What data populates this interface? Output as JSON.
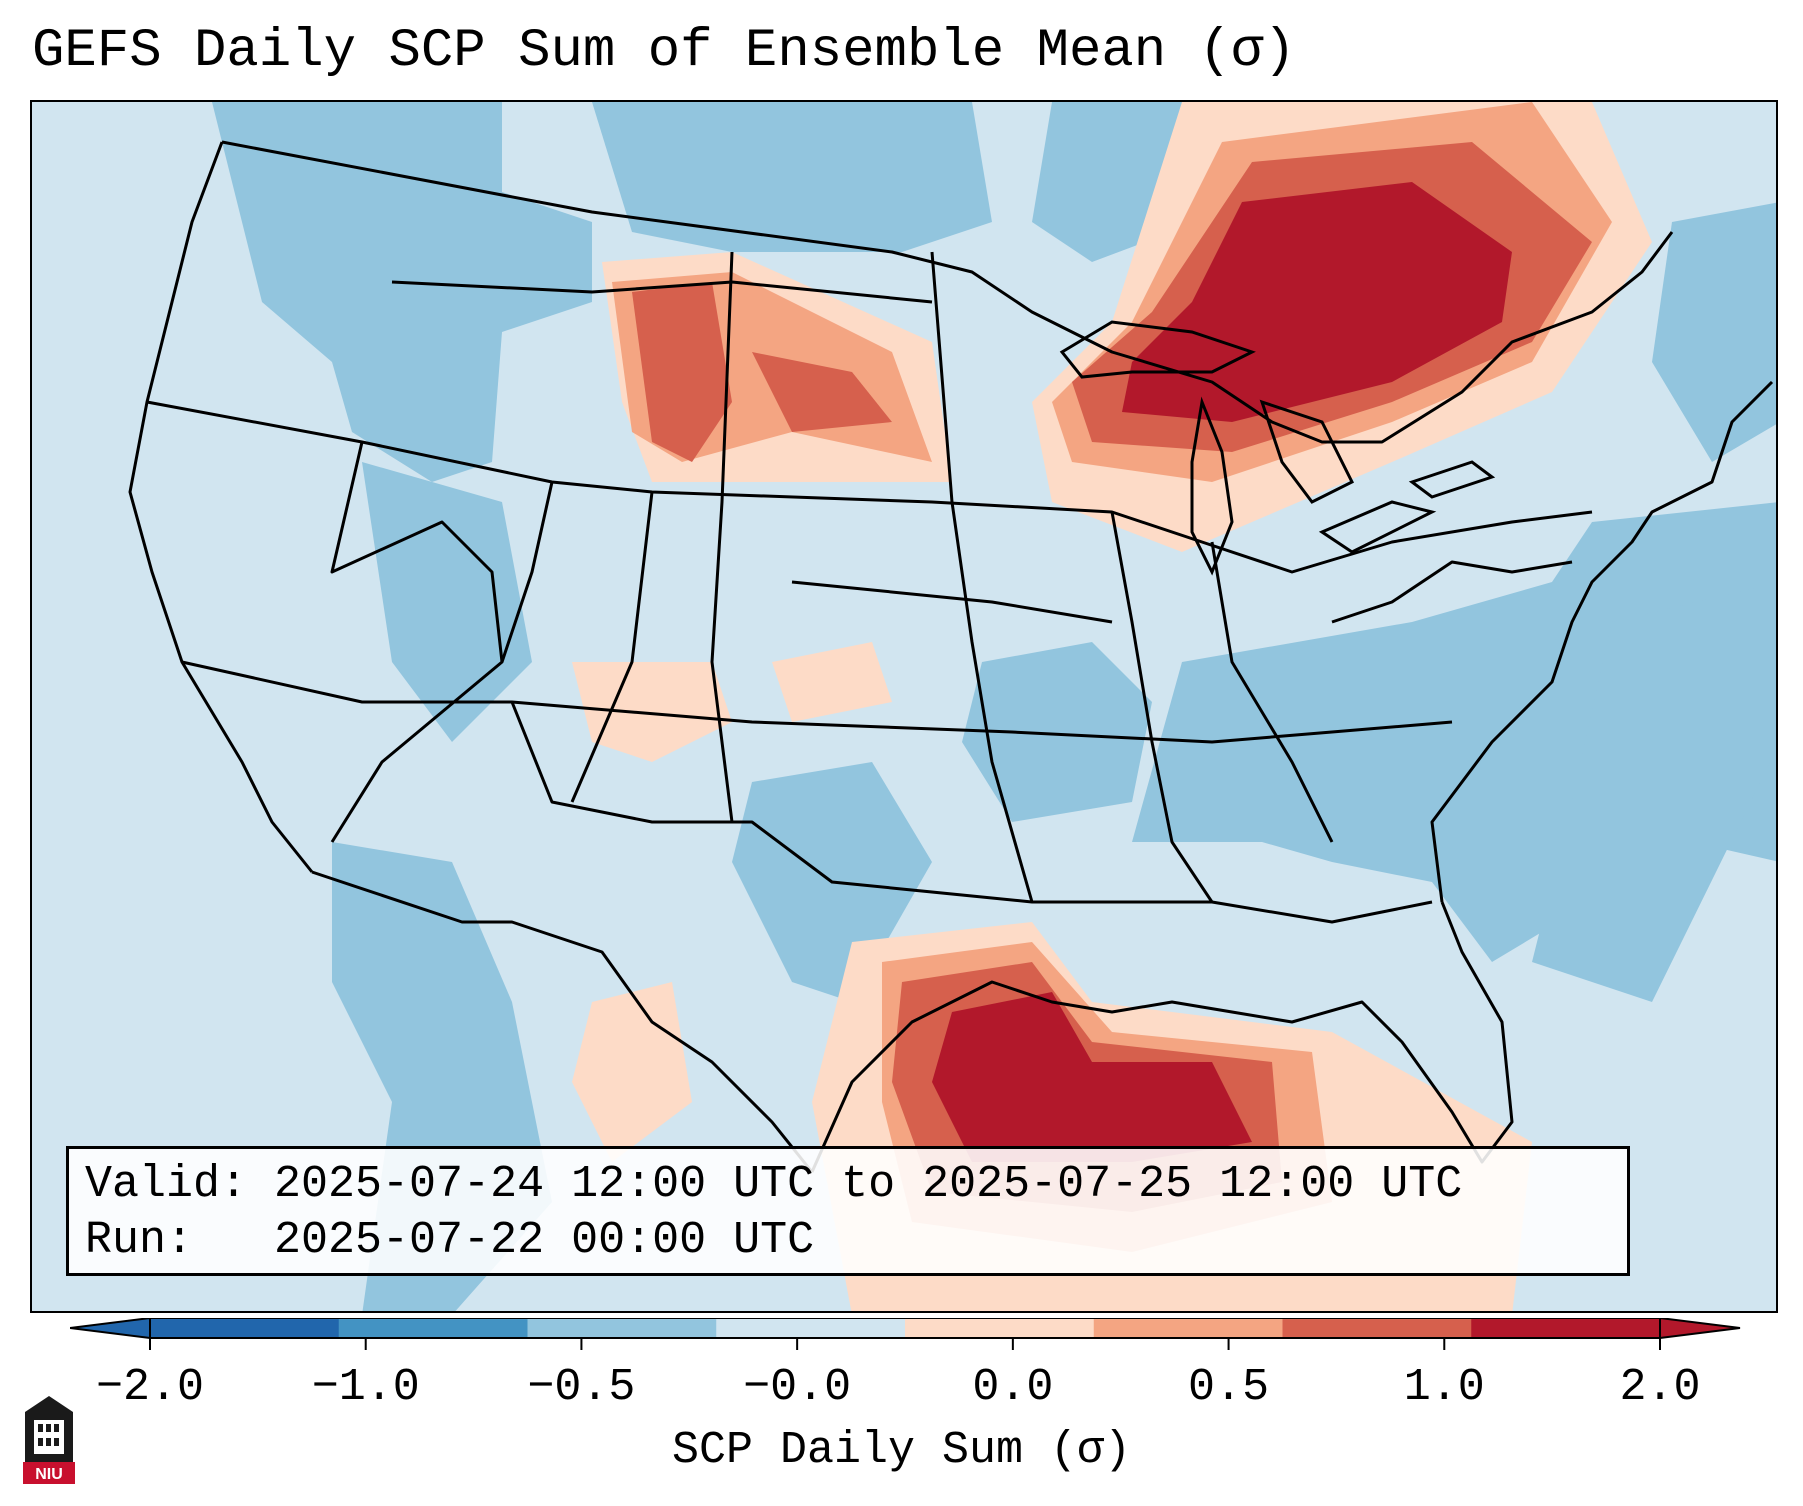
{
  "title": "GEFS Daily SCP Sum of Ensemble Mean (σ)",
  "info": {
    "valid_line": "Valid: 2025-07-24 12:00 UTC to 2025-07-25 12:00 UTC",
    "run_line": "Run:   2025-07-22 00:00 UTC"
  },
  "colorbar": {
    "label": "SCP Daily Sum (σ)",
    "ticks": [
      "−2.0",
      "−1.0",
      "−0.5",
      "−0.0",
      "0.0",
      "0.5",
      "1.0",
      "2.0"
    ],
    "colors": [
      "#2166ac",
      "#4393c3",
      "#92c5de",
      "#d1e5f0",
      "#fddbc7",
      "#f4a582",
      "#d6604d",
      "#b2182b"
    ],
    "extend_low_color": "#2166ac",
    "extend_high_color": "#b2182b"
  },
  "map": {
    "region": "Contiguous United States",
    "background_level_color": "#d1e5f0",
    "features": [
      {
        "name": "Great Lakes / Ontario maximum",
        "level": 2.0
      },
      {
        "name": "Upper Texas coast / Gulf maximum",
        "level": 2.0
      },
      {
        "name": "Montana-Dakotas enhancement",
        "level": 1.0
      },
      {
        "name": "Ohio Valley-Appalachians minimum",
        "level": -0.5
      },
      {
        "name": "Western Atlantic minimum",
        "level": -0.5
      }
    ]
  },
  "logo": {
    "text": "NIU",
    "icon": "niu-logo-icon"
  }
}
